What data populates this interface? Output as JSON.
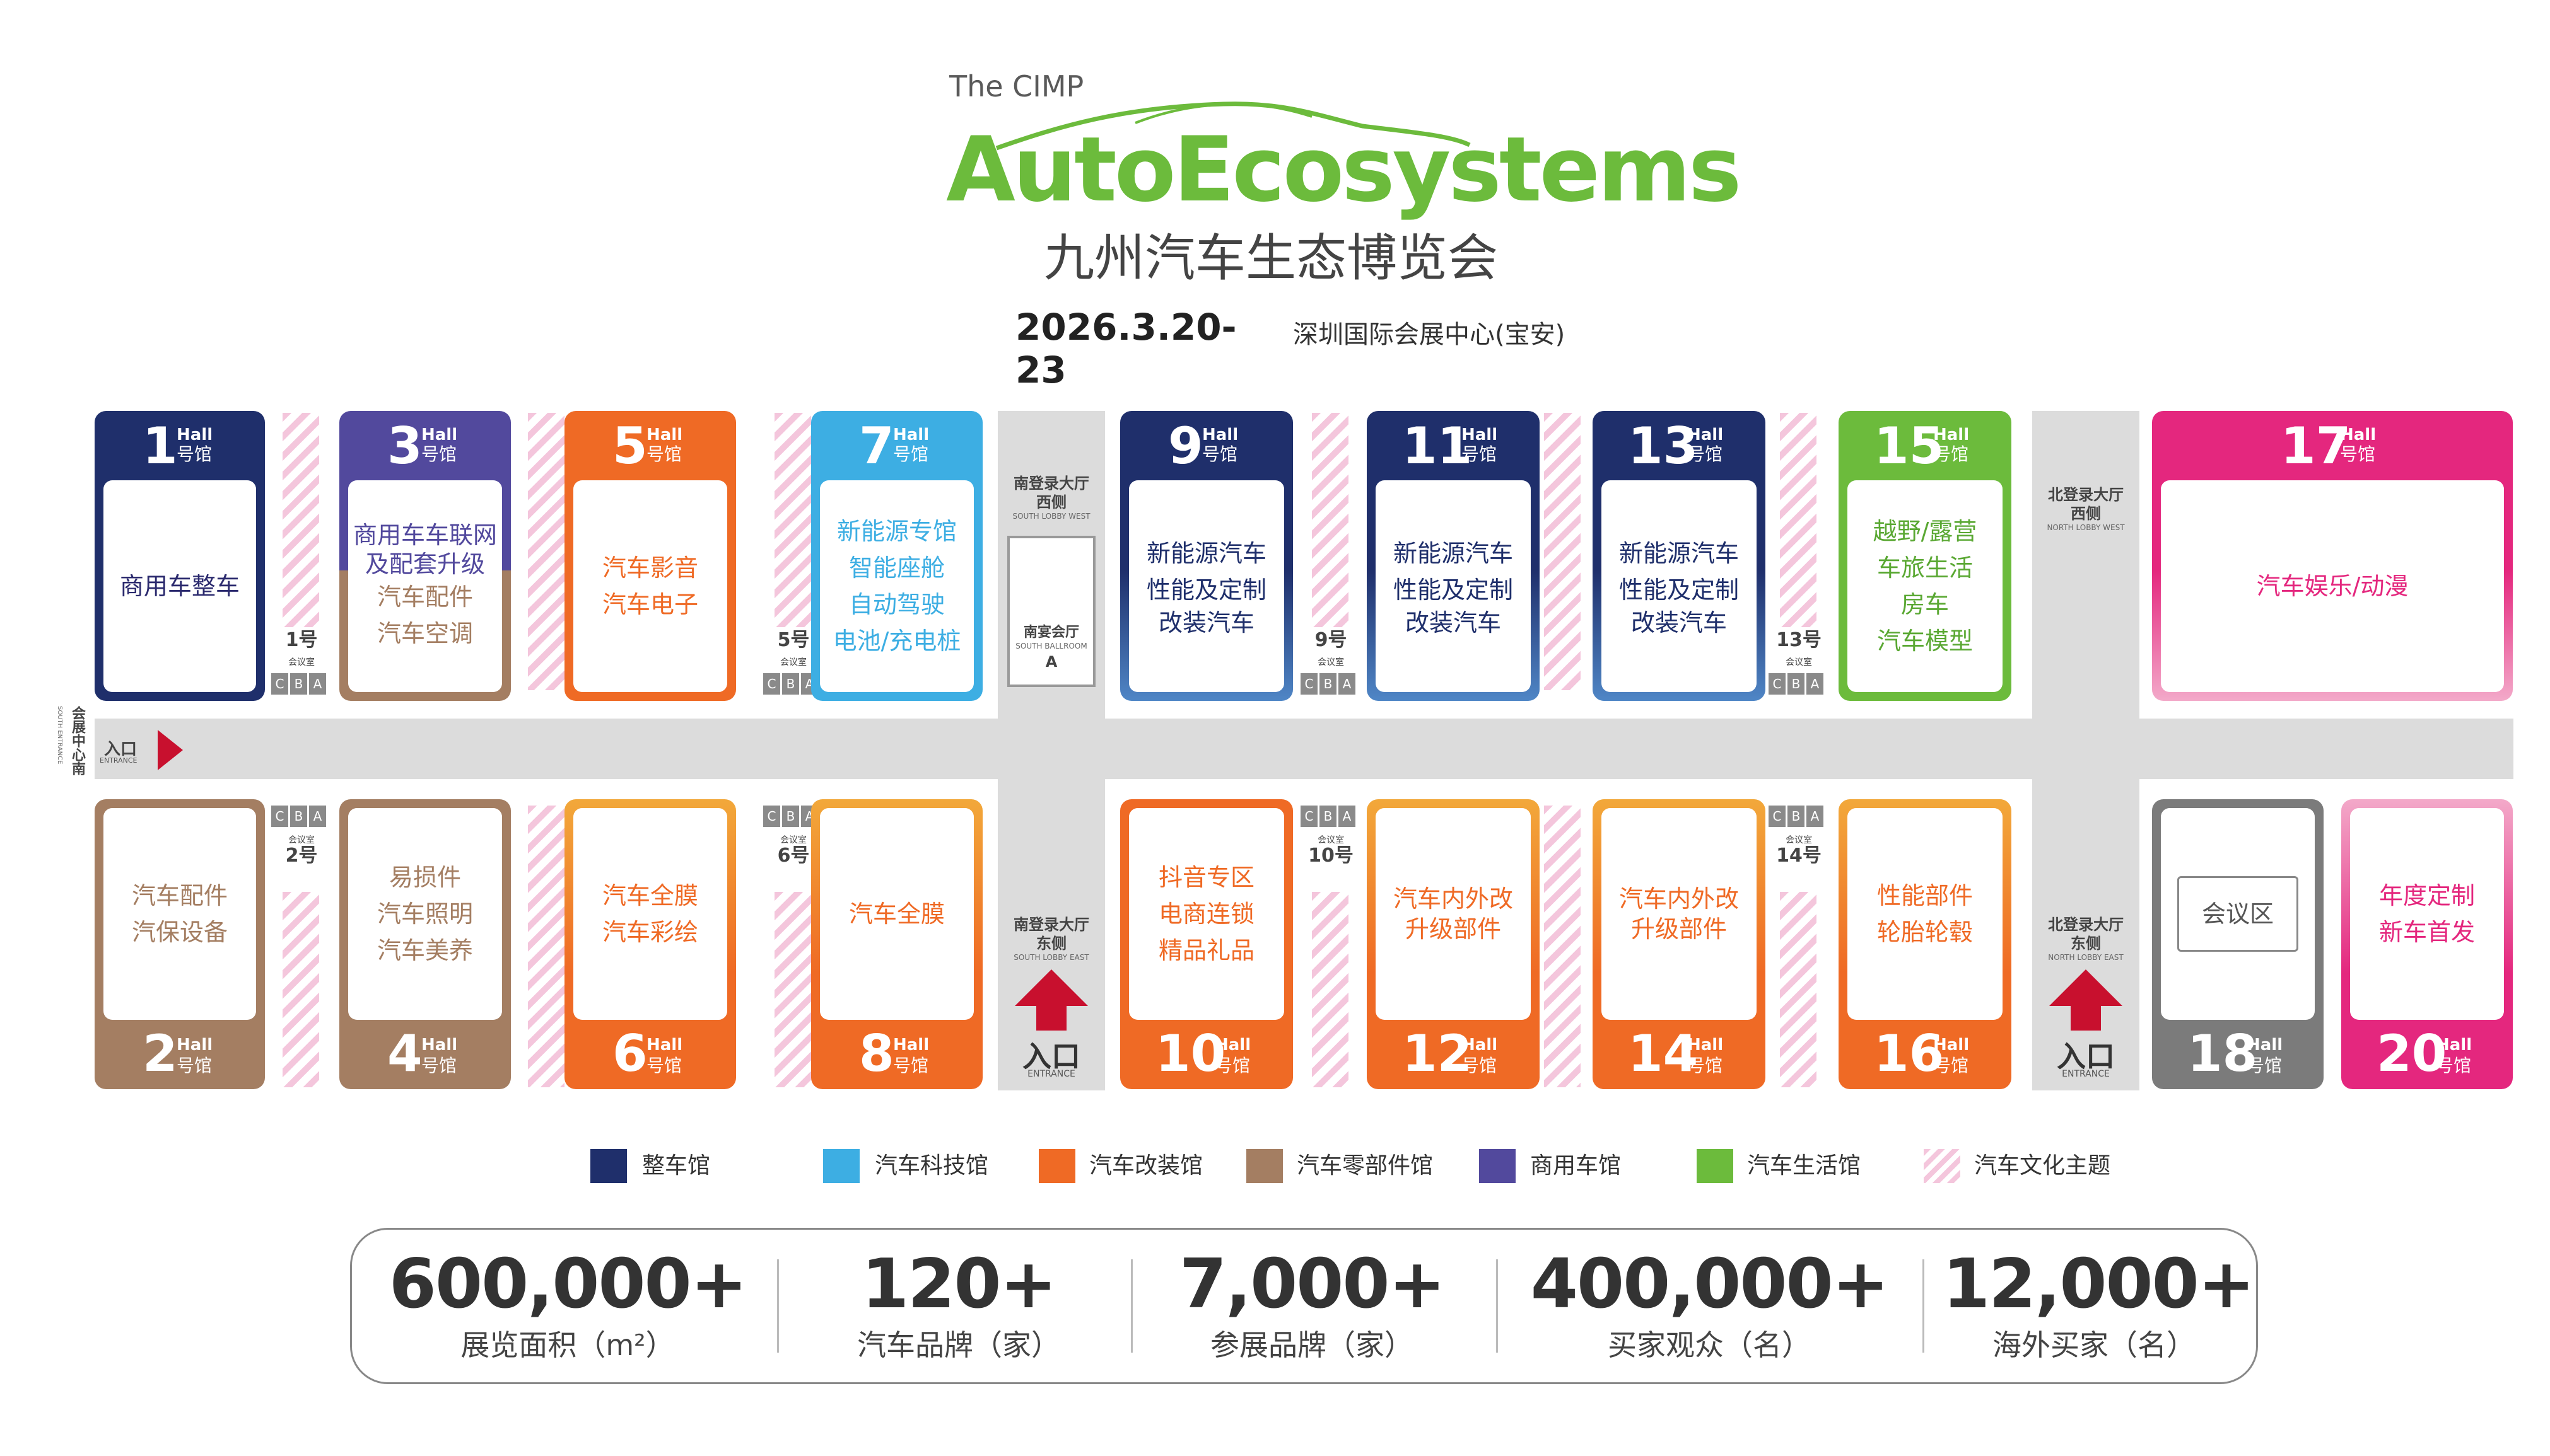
{
  "header": {
    "brand_small": "The CIMP",
    "brand_main": "AutoEcosystems",
    "brand_cn": "九州汽车生态博览会",
    "date": "2026.3.20-23",
    "venue": "深圳国际会展中心(宝安)"
  },
  "colors": {
    "navy": "#1f2f6b",
    "sky": "#3daee3",
    "orange": "#ef6a25",
    "brown": "#a47e62",
    "purple": "#52499d",
    "green": "#6cbb3c",
    "pink": "#e4277e",
    "gray": "#7b7b7b",
    "entrance_red": "#c8102e"
  },
  "hall_common": {
    "en": "Hall",
    "cn": "号馆"
  },
  "halls": {
    "h1": {
      "num": "1",
      "lines": [
        "商用车整车"
      ]
    },
    "h3": {
      "num": "3",
      "lines": [
        "商用车车联网",
        "及配套升级",
        "汽车配件",
        "汽车空调"
      ]
    },
    "h5": {
      "num": "5",
      "lines": [
        "汽车影音",
        "汽车电子"
      ]
    },
    "h7": {
      "num": "7",
      "lines": [
        "新能源专馆",
        "智能座舱",
        "自动驾驶",
        "电池/充电桩"
      ]
    },
    "h9": {
      "num": "9",
      "lines": [
        "新能源汽车",
        "性能及定制",
        "改装汽车"
      ]
    },
    "h11": {
      "num": "11",
      "lines": [
        "新能源汽车",
        "性能及定制",
        "改装汽车"
      ]
    },
    "h13": {
      "num": "13",
      "lines": [
        "新能源汽车",
        "性能及定制",
        "改装汽车"
      ]
    },
    "h15": {
      "num": "15",
      "lines": [
        "越野/露营",
        "车旅生活",
        "房车",
        "汽车模型"
      ]
    },
    "h17": {
      "num": "17",
      "lines": [
        "汽车娱乐/动漫"
      ]
    },
    "h2": {
      "num": "2",
      "lines": [
        "汽车配件",
        "汽保设备"
      ]
    },
    "h4": {
      "num": "4",
      "lines": [
        "易损件",
        "汽车照明",
        "汽车美养"
      ]
    },
    "h6": {
      "num": "6",
      "lines": [
        "汽车全膜",
        "汽车彩绘"
      ]
    },
    "h8": {
      "num": "8",
      "lines": [
        "汽车全膜"
      ]
    },
    "h10": {
      "num": "10",
      "lines": [
        "抖音专区",
        "电商连锁",
        "精品礼品"
      ]
    },
    "h12": {
      "num": "12",
      "lines": [
        "汽车内外改",
        "升级部件"
      ]
    },
    "h14": {
      "num": "14",
      "lines": [
        "汽车内外改",
        "升级部件"
      ]
    },
    "h16": {
      "num": "16",
      "lines": [
        "性能部件",
        "轮胎轮毂"
      ]
    },
    "h18": {
      "num": "18",
      "lines": [
        "会议区"
      ]
    },
    "h20": {
      "num": "20",
      "lines": [
        "年度定制",
        "新车首发"
      ]
    }
  },
  "meeting_rooms": {
    "letters": [
      "C",
      "B",
      "A"
    ],
    "label": "会议室",
    "suffix": "号",
    "items": [
      {
        "num": "1"
      },
      {
        "num": "5"
      },
      {
        "num": "9"
      },
      {
        "num": "13"
      },
      {
        "num": "2"
      },
      {
        "num": "6"
      },
      {
        "num": "10"
      },
      {
        "num": "14"
      }
    ]
  },
  "lobbies": {
    "south_west": {
      "cn1": "南登录大厅",
      "cn2": "西侧",
      "en": "SOUTH LOBBY WEST"
    },
    "south_east": {
      "cn1": "南登录大厅",
      "cn2": "东侧",
      "en": "SOUTH LOBBY EAST"
    },
    "north_west": {
      "cn1": "北登录大厅",
      "cn2": "西侧",
      "en": "NORTH LOBBY WEST"
    },
    "north_east": {
      "cn1": "北登录大厅",
      "cn2": "东侧",
      "en": "NORTH LOBBY EAST"
    },
    "ballroom": {
      "cn": "南宴会厅",
      "en": "SOUTH BALLROOM",
      "letter": "A"
    }
  },
  "entrances": {
    "south": {
      "cn": "会展中心南",
      "en": "SOUTH ENTRANCE"
    },
    "west": {
      "cn": "入口",
      "en": "ENTRANCE"
    },
    "lobby_south": {
      "cn": "入口",
      "en": "ENTRANCE"
    },
    "lobby_north": {
      "cn": "入口",
      "en": "ENTRANCE"
    }
  },
  "legend": [
    {
      "label": "整车馆",
      "color": "#1f2f6b"
    },
    {
      "label": "汽车科技馆",
      "color": "#3daee3"
    },
    {
      "label": "汽车改装馆",
      "color": "#ef6a25"
    },
    {
      "label": "汽车零部件馆",
      "color": "#a47e62"
    },
    {
      "label": "商用车馆",
      "color": "#52499d"
    },
    {
      "label": "汽车生活馆",
      "color": "#6cbb3c"
    },
    {
      "label": "汽车文化主题",
      "color": "stripe-pink"
    }
  ],
  "stats": [
    {
      "value": "600,000+",
      "label": "展览面积（m²）"
    },
    {
      "value": "120+",
      "label": "汽车品牌（家）"
    },
    {
      "value": "7,000+",
      "label": "参展品牌（家）"
    },
    {
      "value": "400,000+",
      "label": "买家观众（名）"
    },
    {
      "value": "12,000+",
      "label": "海外买家（名）"
    }
  ]
}
